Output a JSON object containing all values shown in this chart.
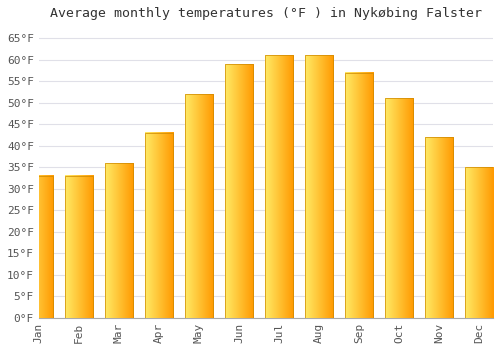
{
  "title": "Average monthly temperatures (°F ) in Nykøbing Falster",
  "months": [
    "Jan",
    "Feb",
    "Mar",
    "Apr",
    "May",
    "Jun",
    "Jul",
    "Aug",
    "Sep",
    "Oct",
    "Nov",
    "Dec"
  ],
  "values": [
    33,
    33,
    36,
    43,
    52,
    59,
    61,
    61,
    57,
    51,
    42,
    35
  ],
  "bar_color_left": "#FFD966",
  "bar_color_right": "#FFA500",
  "bar_color_mid": "#FFB833",
  "ylim": [
    0,
    68
  ],
  "yticks": [
    0,
    5,
    10,
    15,
    20,
    25,
    30,
    35,
    40,
    45,
    50,
    55,
    60,
    65
  ],
  "ytick_labels": [
    "0°F",
    "5°F",
    "10°F",
    "15°F",
    "20°F",
    "25°F",
    "30°F",
    "35°F",
    "40°F",
    "45°F",
    "50°F",
    "55°F",
    "60°F",
    "65°F"
  ],
  "bg_color": "#ffffff",
  "grid_color": "#e0e0e8",
  "title_fontsize": 9.5,
  "tick_fontsize": 8,
  "bar_width": 0.7
}
